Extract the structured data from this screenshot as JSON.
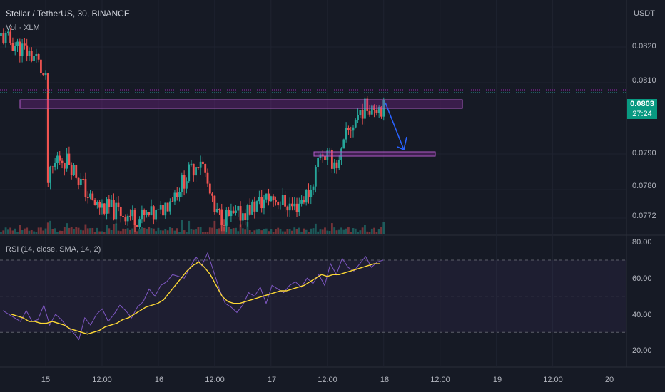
{
  "header": {
    "symbol_title": "Stellar / TetherUS, 30, BINANCE",
    "volume_label": "Vol · XLM",
    "currency": "USDT"
  },
  "price_axis": {
    "labels": [
      "0.0820",
      "0.0810",
      "0.0790",
      "0.0780",
      "0.0772"
    ]
  },
  "last_price": {
    "value": "0.0803",
    "countdown": "27:24"
  },
  "rsi": {
    "title": "RSI (14, close, SMA, 14, 2)",
    "axis_labels": [
      "80.00",
      "60.00",
      "40.00",
      "20.00"
    ]
  },
  "time_axis": {
    "labels": [
      "15",
      "12:00",
      "16",
      "12:00",
      "17",
      "12:00",
      "18",
      "12:00",
      "19",
      "12:00",
      "20"
    ]
  },
  "colors": {
    "background": "#161a25",
    "up": "#26a69a",
    "down": "#ef5350",
    "zone": "#9c27b0",
    "arrow": "#2962ff",
    "rsi_line": "#7e57c2",
    "rsi_ma": "#fdd835"
  },
  "chart_data": [
    {
      "type": "candlestick",
      "title": "Stellar / TetherUS, 30, BINANCE",
      "ylim": [
        0.0768,
        0.0828
      ],
      "yticks": [
        0.0772,
        0.078,
        0.079,
        0.081,
        0.082
      ],
      "x_ticks": [
        "15",
        "12:00",
        "16",
        "12:00",
        "17",
        "12:00",
        "18",
        "12:00",
        "19",
        "12:00",
        "20"
      ],
      "key_price_path": [
        {
          "x": "start",
          "y": 0.0823
        },
        {
          "x": "14 22:00",
          "y": 0.0817
        },
        {
          "x": "15 00:00",
          "y": 0.081
        },
        {
          "x": "15 00:30",
          "y": 0.0782
        },
        {
          "x": "15 02:30",
          "y": 0.0789
        },
        {
          "x": "15 05:00",
          "y": 0.0788
        },
        {
          "x": "15 10:00",
          "y": 0.0776
        },
        {
          "x": "15 20:00",
          "y": 0.0772
        },
        {
          "x": "16 00:00",
          "y": 0.0773
        },
        {
          "x": "16 09:00",
          "y": 0.0789
        },
        {
          "x": "16 10:00",
          "y": 0.0784
        },
        {
          "x": "16 12:00",
          "y": 0.0773
        },
        {
          "x": "16 16:00",
          "y": 0.0772
        },
        {
          "x": "17 00:00",
          "y": 0.0778
        },
        {
          "x": "17 05:00",
          "y": 0.0775
        },
        {
          "x": "17 08:30",
          "y": 0.078
        },
        {
          "x": "17 10:30",
          "y": 0.0791
        },
        {
          "x": "17 12:00",
          "y": 0.0789
        },
        {
          "x": "17 14:30",
          "y": 0.0787
        },
        {
          "x": "17 16:00",
          "y": 0.0795
        },
        {
          "x": "17 19:00",
          "y": 0.0802
        },
        {
          "x": "17 21:30",
          "y": 0.0804
        },
        {
          "x": "18 00:00",
          "y": 0.0803
        }
      ],
      "last_price": 0.0803,
      "resistance_zone": [
        0.0804,
        0.0806
      ],
      "support_zone": [
        0.079,
        0.0791
      ],
      "projection_arrow": {
        "from": 0.0803,
        "to": 0.079
      }
    },
    {
      "type": "line",
      "title": "RSI (14, close, SMA, 14, 2)",
      "ylim": [
        15,
        82
      ],
      "yticks": [
        20,
        40,
        60,
        80
      ],
      "bands": [
        30,
        50,
        70
      ],
      "series": [
        {
          "values": [
            42,
            40,
            38,
            36,
            42,
            36,
            37,
            45,
            34,
            40,
            37,
            33,
            30,
            26,
            38,
            34,
            40,
            43,
            36,
            40,
            45,
            42,
            38,
            44,
            47,
            54,
            50,
            56,
            58,
            62,
            61,
            60,
            66,
            72,
            67,
            74,
            64,
            54,
            46,
            44,
            41,
            45,
            52,
            50,
            55,
            46,
            56,
            54,
            52,
            56,
            58,
            55,
            60,
            57,
            62,
            56,
            68,
            62,
            71,
            66,
            64,
            68,
            72,
            66,
            69,
            70
          ]
        },
        {
          "values": [
            40,
            39,
            38,
            36,
            36,
            35,
            35,
            36,
            35,
            34,
            32,
            31,
            30,
            29,
            30,
            31,
            33,
            34,
            35,
            37,
            38,
            40,
            42,
            44,
            45,
            46,
            48,
            52,
            56,
            60,
            64,
            67,
            69,
            66,
            62,
            56,
            50,
            47,
            46,
            46,
            47,
            48,
            49,
            50,
            51,
            52,
            53,
            53,
            54,
            55,
            56,
            58,
            60,
            62,
            61,
            62,
            62,
            63,
            64,
            65,
            66,
            67,
            68,
            68
          ]
        }
      ]
    }
  ]
}
